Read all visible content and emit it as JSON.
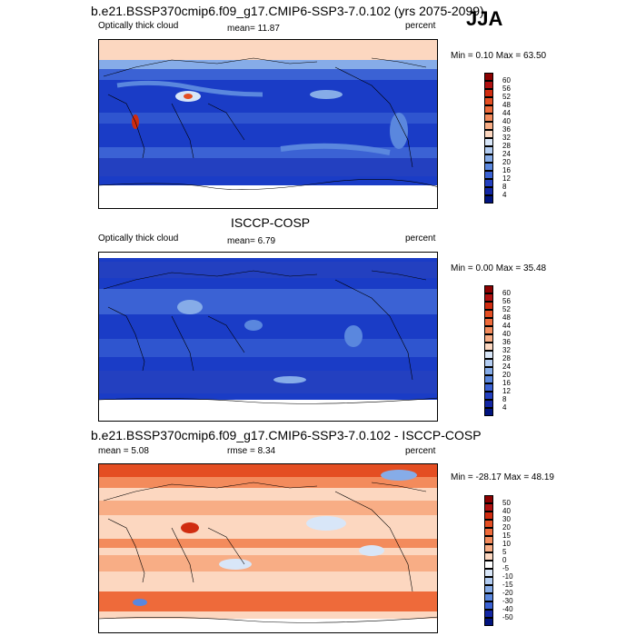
{
  "panels": [
    {
      "title": "b.e21.BSSP370cmip6.f09_g17.CMIP6-SSP3-7.0.102 (yrs 2075-2099)",
      "left_label": "Optically thick cloud",
      "center_label": "mean=  11.87",
      "right_label": "percent",
      "minmax": "Min =   0.10 Max =  63.50",
      "colorbar": {
        "labels": [
          "60",
          "56",
          "52",
          "48",
          "44",
          "40",
          "36",
          "32",
          "28",
          "24",
          "20",
          "16",
          "12",
          "8",
          "4"
        ],
        "colors": [
          "#8b0000",
          "#b01010",
          "#d02c10",
          "#e44e22",
          "#ee6a3a",
          "#f38b5c",
          "#f8ad85",
          "#fcd7c0",
          "#d8e6f8",
          "#b3cdf2",
          "#86ace8",
          "#5a87de",
          "#3b62d4",
          "#2340c0",
          "#1226a4",
          "#00137e"
        ]
      }
    },
    {
      "title": "ISCCP-COSP",
      "left_label": "Optically thick cloud",
      "center_label": "mean=   6.79",
      "right_label": "percent",
      "minmax": "Min =   0.00 Max =  35.48",
      "colorbar": {
        "labels": [
          "60",
          "56",
          "52",
          "48",
          "44",
          "40",
          "36",
          "32",
          "28",
          "24",
          "20",
          "16",
          "12",
          "8",
          "4"
        ],
        "colors": [
          "#8b0000",
          "#b01010",
          "#d02c10",
          "#e44e22",
          "#ee6a3a",
          "#f38b5c",
          "#f8ad85",
          "#fcd7c0",
          "#d8e6f8",
          "#b3cdf2",
          "#86ace8",
          "#5a87de",
          "#3b62d4",
          "#2340c0",
          "#1226a4",
          "#00137e"
        ]
      }
    },
    {
      "title": "b.e21.BSSP370cmip6.f09_g17.CMIP6-SSP3-7.0.102 - ISCCP-COSP",
      "left_label": "mean =   5.08",
      "center_label": "rmse =   8.34",
      "right_label": "percent",
      "minmax": "Min = -28.17 Max =  48.19",
      "colorbar": {
        "labels": [
          "50",
          "40",
          "30",
          "20",
          "15",
          "10",
          "5",
          "0",
          "-5",
          "-10",
          "-15",
          "-20",
          "-30",
          "-40",
          "-50"
        ],
        "colors": [
          "#8b0000",
          "#b01010",
          "#d02c10",
          "#e44e22",
          "#ee6a3a",
          "#f38b5c",
          "#f8ad85",
          "#fcd7c0",
          "#ffffff",
          "#d8e6f8",
          "#b3cdf2",
          "#86ace8",
          "#5a87de",
          "#3b62d4",
          "#1226a4",
          "#00137e"
        ]
      }
    }
  ],
  "season_label": "JJA"
}
